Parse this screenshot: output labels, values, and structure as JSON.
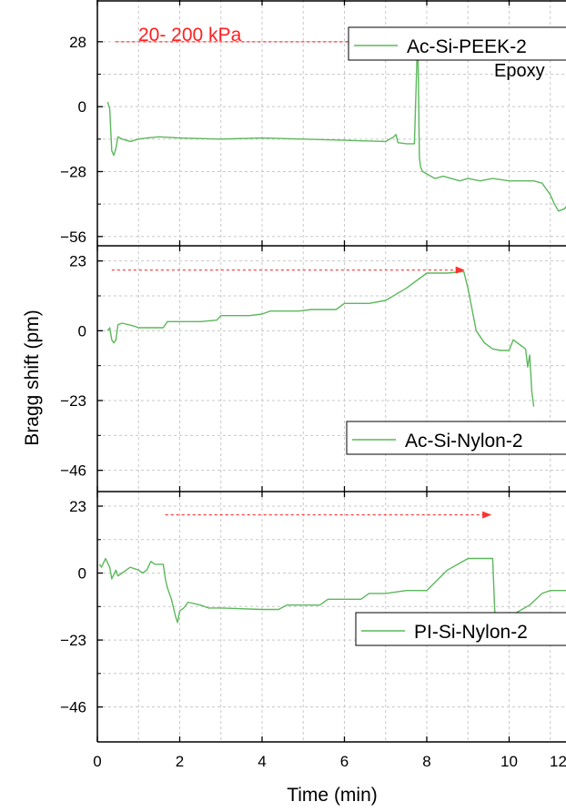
{
  "chart_data": {
    "type": "line",
    "xlabel": "Time (min)",
    "ylabel": "Bragg shift (pm)",
    "xlim": [
      0,
      12
    ],
    "xticks": [
      0,
      2,
      4,
      6,
      8,
      10,
      12
    ],
    "x_tick_labels": [
      "0",
      "2",
      "4",
      "6",
      "8",
      "10",
      "12"
    ],
    "grid": true,
    "line_color": "#5cb85c",
    "arrow_color": "#ff3030",
    "annotation_color": "#ff2020",
    "panels": [
      {
        "legend": "Ac-Si-PEEK-2",
        "extra_label": "Epoxy",
        "annotation": "20- 200 kPa",
        "ylim": [
          -60,
          46
        ],
        "yticks": [
          28,
          0,
          -28,
          -56
        ],
        "y_tick_labels": [
          "28",
          "0",
          "−28",
          "−56"
        ],
        "arrow": {
          "x_start": 0.45,
          "x_end": 7.75,
          "y": 28
        },
        "series": [
          {
            "x": [
              0.25,
              0.3,
              0.35,
              0.4,
              0.45,
              0.5,
              0.6,
              0.8,
              1.0,
              1.2,
              1.5,
              2.0,
              3.0,
              4.0,
              5.0,
              6.0,
              7.0,
              7.2,
              7.25,
              7.3,
              7.5,
              7.7,
              7.75,
              7.78,
              7.8,
              7.82,
              7.85,
              7.9,
              8.0,
              8.2,
              8.4,
              8.6,
              8.8,
              9.0,
              9.3,
              9.6,
              10.0,
              10.3,
              10.6,
              10.8,
              11.0,
              11.1,
              11.2,
              11.35,
              11.5,
              11.7,
              11.9,
              12.0
            ],
            "y": [
              2,
              -1,
              -19,
              -21,
              -18,
              -13,
              -14,
              -15,
              -14,
              -13.5,
              -13,
              -13.5,
              -14,
              -13.5,
              -14,
              -14.5,
              -15,
              -13,
              -12,
              -15.5,
              -16,
              -16,
              14,
              31,
              8,
              -22,
              -26,
              -28,
              -29,
              -31,
              -30,
              -31,
              -32,
              -31,
              -32,
              -31,
              -32,
              -32,
              -32,
              -33,
              -38,
              -42,
              -45,
              -44,
              -40,
              -35,
              -29,
              -28
            ]
          }
        ]
      },
      {
        "legend": "Ac-Si-Nylon-2",
        "arrow": {
          "x_start": 0.35,
          "x_end": 8.9,
          "y": 20
        },
        "ylim": [
          -53,
          28
        ],
        "yticks": [
          23,
          0,
          -23,
          -46
        ],
        "y_tick_labels": [
          "23",
          "0",
          "−23",
          "−46"
        ],
        "series": [
          {
            "x": [
              0.25,
              0.3,
              0.35,
              0.4,
              0.45,
              0.5,
              0.6,
              0.9,
              1.0,
              1.6,
              1.7,
              2.5,
              2.9,
              3.0,
              3.7,
              4.0,
              4.2,
              4.9,
              5.2,
              5.8,
              6.0,
              6.3,
              6.6,
              7.0,
              7.5,
              8.0,
              8.5,
              8.9,
              9.0,
              9.2,
              9.4,
              9.6,
              9.8,
              10.0,
              10.1,
              10.3,
              10.4,
              10.45,
              10.5,
              10.55,
              10.6
            ],
            "y": [
              0,
              1,
              -3,
              -4,
              -3,
              2,
              2.5,
              1.5,
              1,
              1,
              3,
              3,
              3.5,
              5,
              5,
              5.5,
              6.5,
              6.5,
              7,
              7,
              9,
              9,
              9,
              10,
              14,
              19,
              19,
              19.5,
              14,
              0,
              -4,
              -6,
              -6.5,
              -6.5,
              -3,
              -5,
              -6,
              -12,
              -8,
              -20,
              -25
            ]
          }
        ]
      },
      {
        "legend": "PI-Si-Nylon-2",
        "arrow": {
          "x_start": 1.65,
          "x_end": 9.55,
          "y": 20
        },
        "ylim": [
          -58,
          28
        ],
        "yticks": [
          23,
          0,
          -23,
          -46
        ],
        "y_tick_labels": [
          "23",
          "0",
          "−23",
          "−46"
        ],
        "series": [
          {
            "x": [
              0.05,
              0.1,
              0.2,
              0.3,
              0.35,
              0.45,
              0.5,
              0.6,
              0.8,
              1.0,
              1.1,
              1.2,
              1.3,
              1.4,
              1.6,
              1.65,
              1.7,
              1.8,
              1.9,
              1.95,
              2.0,
              2.1,
              2.2,
              2.5,
              2.7,
              3.0,
              4.0,
              4.4,
              4.6,
              5.0,
              5.4,
              5.6,
              6.0,
              6.4,
              6.6,
              7.0,
              7.5,
              8.0,
              8.5,
              9.0,
              9.3,
              9.6,
              9.65,
              9.7,
              9.75,
              9.8,
              10.0,
              10.5,
              10.8,
              11.0,
              11.5,
              11.9
            ],
            "y": [
              3,
              2,
              5,
              2,
              -2,
              1,
              -1,
              0,
              2,
              1,
              0,
              1,
              4,
              3,
              3,
              -2,
              -5,
              -9,
              -15,
              -17,
              -13,
              -12,
              -10,
              -11,
              -12,
              -12,
              -12.5,
              -12.5,
              -11,
              -11,
              -11,
              -9,
              -9,
              -9,
              -7,
              -7,
              -6,
              -6,
              1,
              5,
              5,
              5,
              -13,
              -17,
              -16,
              -17,
              -15,
              -11,
              -7,
              -6,
              -6,
              -6
            ]
          }
        ]
      }
    ]
  }
}
